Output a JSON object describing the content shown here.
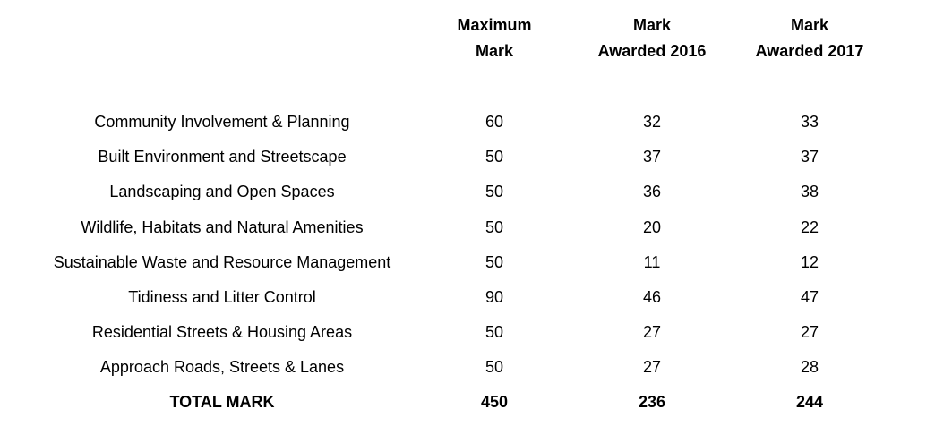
{
  "table": {
    "headers": [
      {
        "line1": "Maximum",
        "line2": "Mark"
      },
      {
        "line1": "Mark",
        "line2": "Awarded 2016"
      },
      {
        "line1": "Mark",
        "line2": "Awarded 2017"
      }
    ],
    "rows": [
      {
        "category": "Community Involvement & Planning",
        "max": "60",
        "y2016": "32",
        "y2017": "33"
      },
      {
        "category": "Built Environment and Streetscape",
        "max": "50",
        "y2016": "37",
        "y2017": "37"
      },
      {
        "category": "Landscaping and Open Spaces",
        "max": "50",
        "y2016": "36",
        "y2017": "38"
      },
      {
        "category": "Wildlife, Habitats and Natural Amenities",
        "max": "50",
        "y2016": "20",
        "y2017": "22"
      },
      {
        "category": "Sustainable Waste and Resource Management",
        "max": "50",
        "y2016": "11",
        "y2017": "12"
      },
      {
        "category": "Tidiness and Litter Control",
        "max": "90",
        "y2016": "46",
        "y2017": "47"
      },
      {
        "category": "Residential Streets & Housing Areas",
        "max": "50",
        "y2016": "27",
        "y2017": "27"
      },
      {
        "category": "Approach Roads, Streets & Lanes",
        "max": "50",
        "y2016": "27",
        "y2017": "28"
      }
    ],
    "total": {
      "label": "TOTAL MARK",
      "max": "450",
      "y2016": "236",
      "y2017": "244"
    }
  }
}
